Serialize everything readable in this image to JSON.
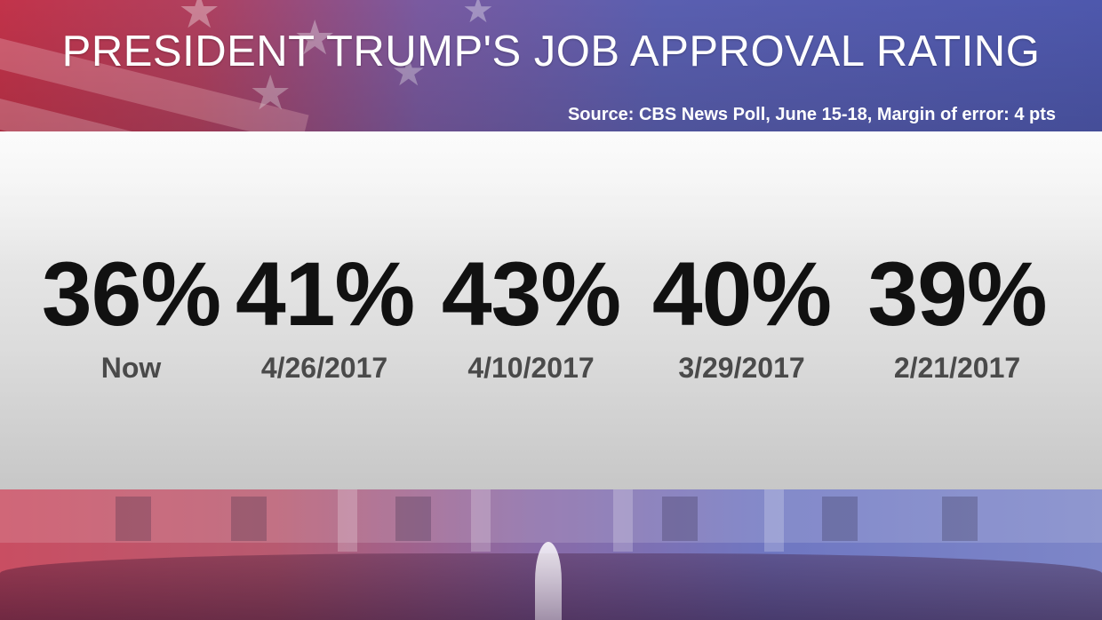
{
  "header": {
    "title": "PRESIDENT TRUMP'S JOB APPROVAL RATING",
    "source": "Source: CBS News Poll, June 15-18, Margin of error: 4 pts"
  },
  "ratings": [
    {
      "value": "36%",
      "label": "Now"
    },
    {
      "value": "41%",
      "label": "4/26/2017"
    },
    {
      "value": "43%",
      "label": "4/10/2017"
    },
    {
      "value": "40%",
      "label": "3/29/2017"
    },
    {
      "value": "39%",
      "label": "2/21/2017"
    }
  ],
  "colors": {
    "banner_red": "#c2334a",
    "banner_blue": "#4e58ad",
    "value_text": "#111111",
    "date_text": "#4a4a4a"
  },
  "icons": [
    "flag-star-icon",
    "white-house-image",
    "fountain-image"
  ]
}
